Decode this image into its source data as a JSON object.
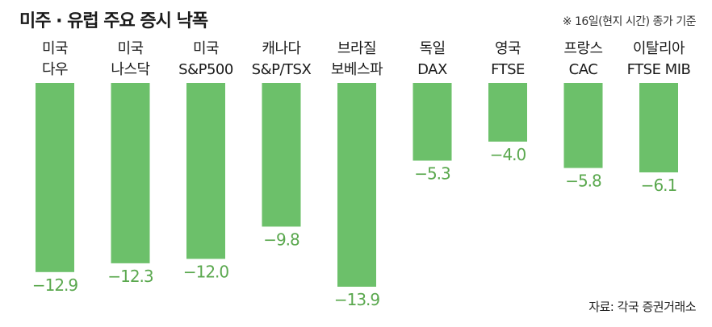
{
  "header": {
    "title": "미주 · 유럽 주요 증시 낙폭",
    "note": "※ 16일(현지 시간) 종가 기준"
  },
  "footer": {
    "source": "자료: 각국 증권거래소"
  },
  "colors": {
    "bar": "#6cc06a",
    "value_label": "#5aa84e"
  },
  "chart_data": {
    "type": "bar",
    "categories": [
      [
        "미국",
        "다우"
      ],
      [
        "미국",
        "나스닥"
      ],
      [
        "미국",
        "S&P500"
      ],
      [
        "캐나다",
        "S&P/TSX"
      ],
      [
        "브라질",
        "보베스파"
      ],
      [
        "독일",
        "DAX"
      ],
      [
        "영국",
        "FTSE"
      ],
      [
        "프랑스",
        "CAC"
      ],
      [
        "이탈리아",
        "FTSE MIB"
      ]
    ],
    "values": [
      -12.9,
      -12.3,
      -12.0,
      -9.8,
      -13.9,
      -5.3,
      -4.0,
      -5.8,
      -6.1
    ],
    "value_labels": [
      "−12.9",
      "−12.3",
      "−12.0",
      "−9.8",
      "−13.9",
      "−5.3",
      "−4.0",
      "−5.8",
      "−6.1"
    ],
    "ylim": [
      -13.9,
      0
    ]
  }
}
